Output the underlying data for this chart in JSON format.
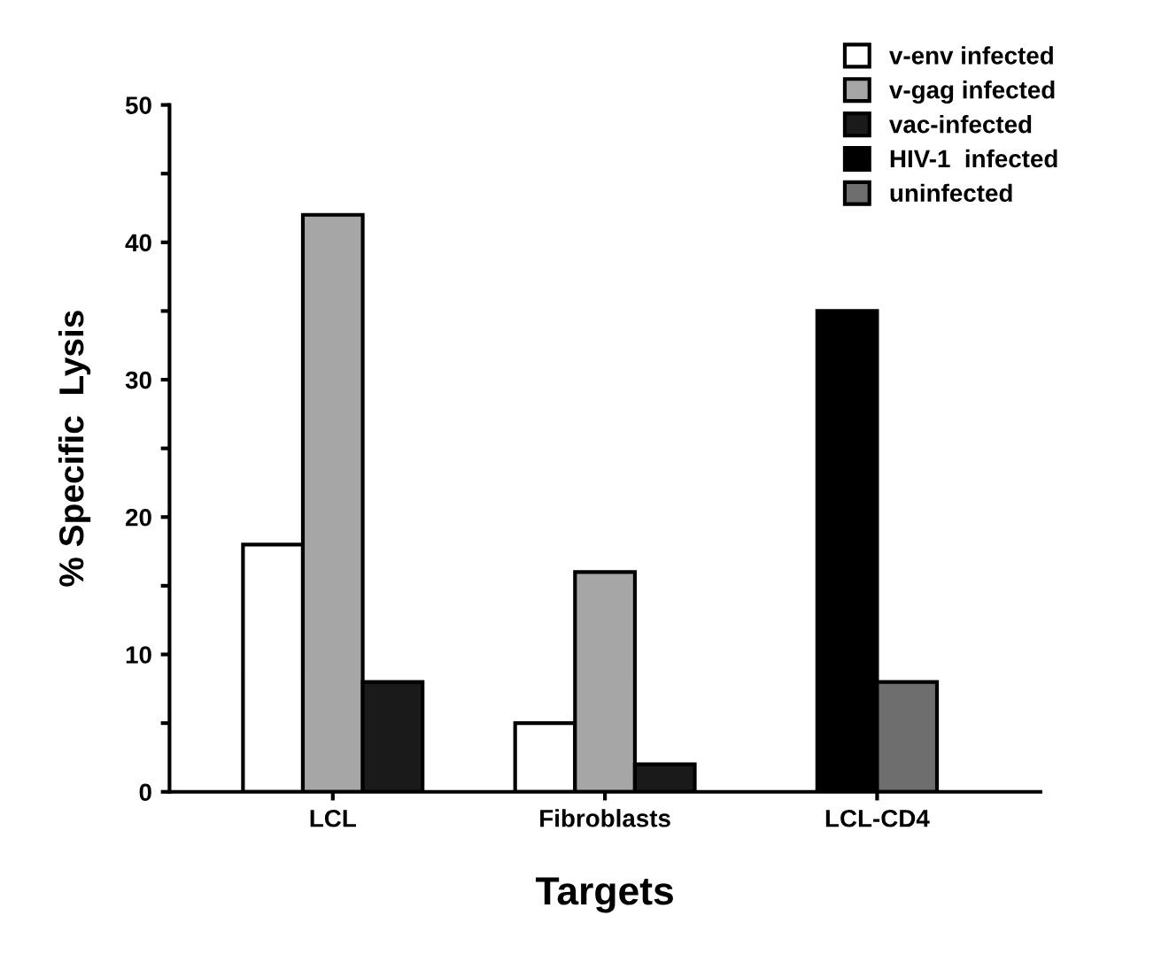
{
  "chart_data": {
    "type": "bar",
    "xlabel": "Targets",
    "ylabel": "% Specific  Lysis",
    "categories": [
      "LCL",
      "Fibroblasts",
      "LCL-CD4"
    ],
    "series": [
      {
        "name": "v-env infected",
        "color": "#ffffff",
        "values": [
          18,
          5,
          null
        ]
      },
      {
        "name": "v-gag infected",
        "color": "#a6a6a6",
        "values": [
          42,
          16,
          null
        ]
      },
      {
        "name": "vac-infected",
        "color": "#1a1a1a",
        "values": [
          8,
          2,
          null
        ]
      },
      {
        "name": "HIV-1  infected",
        "color": "#000000",
        "values": [
          null,
          null,
          35
        ]
      },
      {
        "name": "uninfected",
        "color": "#6e6e6e",
        "values": [
          null,
          null,
          8
        ]
      }
    ],
    "ylim": [
      0,
      50
    ],
    "yticks": [
      0,
      {
        "value": 5,
        "label": null
      },
      10,
      {
        "value": 15,
        "label": null
      },
      20,
      {
        "value": 25,
        "label": null
      },
      30,
      {
        "value": 35,
        "label": null
      },
      40,
      {
        "value": 45,
        "label": null
      },
      50
    ],
    "legend": "top right",
    "grid": false
  }
}
